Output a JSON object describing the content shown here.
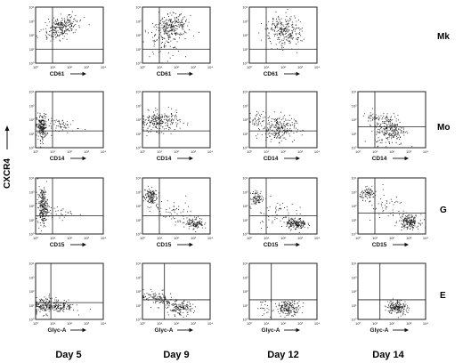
{
  "figure": {
    "y_axis_label": "CXCR4",
    "columns": [
      "Day 5",
      "Day 9",
      "Day 12",
      "Day 14"
    ],
    "rows": [
      {
        "label": "Mk",
        "marker": "CD61"
      },
      {
        "label": "Mo",
        "marker": "CD14"
      },
      {
        "label": "G",
        "marker": "CD15"
      },
      {
        "label": "E",
        "marker": "Glyc-A"
      }
    ],
    "axis_ticks": [
      "10⁰",
      "10¹",
      "10²",
      "10³",
      "10⁴"
    ]
  },
  "chart_data": [
    {
      "type": "scatter",
      "row": "Mk",
      "day": "Day 5",
      "xlabel": "CD61",
      "ylabel": "CXCR4",
      "xlim": [
        0,
        4
      ],
      "ylim": [
        0,
        4
      ],
      "quadrant_gate": [
        1,
        1
      ],
      "clusters": [
        {
          "x": 1.5,
          "y": 2.6,
          "sx": 0.55,
          "sy": 0.35,
          "n": 260,
          "tilt": 0.6
        }
      ]
    },
    {
      "type": "scatter",
      "row": "Mk",
      "day": "Day 9",
      "xlabel": "CD61",
      "ylabel": "CXCR4",
      "xlim": [
        0,
        4
      ],
      "ylim": [
        0,
        4
      ],
      "quadrant_gate": [
        1,
        1
      ],
      "clusters": [
        {
          "x": 1.75,
          "y": 2.6,
          "sx": 0.55,
          "sy": 0.4,
          "n": 250,
          "tilt": 0.5
        },
        {
          "x": 1.1,
          "y": 1.5,
          "sx": 0.6,
          "sy": 0.6,
          "n": 60,
          "tilt": 0
        }
      ]
    },
    {
      "type": "scatter",
      "row": "Mk",
      "day": "Day 12",
      "xlabel": "CD61",
      "ylabel": "CXCR4",
      "xlim": [
        0,
        4
      ],
      "ylim": [
        0,
        4
      ],
      "quadrant_gate": [
        1,
        1
      ],
      "clusters": [
        {
          "x": 2.0,
          "y": 2.3,
          "sx": 0.5,
          "sy": 0.6,
          "n": 260,
          "tilt": 0.6
        }
      ]
    },
    {
      "type": "scatter",
      "row": "Mo",
      "day": "Day 5",
      "xlabel": "CD14",
      "ylabel": "CXCR4",
      "xlim": [
        0,
        4
      ],
      "ylim": [
        0,
        4
      ],
      "quadrant_gate": [
        1,
        1.2
      ],
      "clusters": [
        {
          "x": 0.35,
          "y": 1.5,
          "sx": 0.15,
          "sy": 0.45,
          "n": 200,
          "tilt": 0
        },
        {
          "x": 1.6,
          "y": 1.6,
          "sx": 0.5,
          "sy": 0.25,
          "n": 60,
          "tilt": 0
        }
      ]
    },
    {
      "type": "scatter",
      "row": "Mo",
      "day": "Day 9",
      "xlabel": "CD14",
      "ylabel": "CXCR4",
      "xlim": [
        0,
        4
      ],
      "ylim": [
        0,
        4
      ],
      "quadrant_gate": [
        1,
        1.2
      ],
      "clusters": [
        {
          "x": 1.0,
          "y": 1.9,
          "sx": 0.6,
          "sy": 0.35,
          "n": 230,
          "tilt": 0
        }
      ]
    },
    {
      "type": "scatter",
      "row": "Mo",
      "day": "Day 12",
      "xlabel": "CD14",
      "ylabel": "CXCR4",
      "xlim": [
        0,
        4
      ],
      "ylim": [
        0,
        4
      ],
      "quadrant_gate": [
        1,
        1.2
      ],
      "clusters": [
        {
          "x": 1.7,
          "y": 1.4,
          "sx": 0.5,
          "sy": 0.45,
          "n": 230,
          "tilt": 0
        },
        {
          "x": 0.4,
          "y": 2.0,
          "sx": 0.2,
          "sy": 0.3,
          "n": 40,
          "tilt": 0
        }
      ]
    },
    {
      "type": "scatter",
      "row": "Mo",
      "day": "Day 14",
      "xlabel": "CD14",
      "ylabel": "CXCR4",
      "xlim": [
        0,
        4
      ],
      "ylim": [
        0,
        4
      ],
      "quadrant_gate": [
        1,
        1.5
      ],
      "clusters": [
        {
          "x": 1.9,
          "y": 1.3,
          "sx": 0.45,
          "sy": 0.55,
          "n": 250,
          "tilt": 0
        },
        {
          "x": 1.0,
          "y": 2.2,
          "sx": 0.3,
          "sy": 0.25,
          "n": 40,
          "tilt": 0
        }
      ]
    },
    {
      "type": "scatter",
      "row": "G",
      "day": "Day 5",
      "xlabel": "CD15",
      "ylabel": "CXCR4",
      "xlim": [
        0,
        4
      ],
      "ylim": [
        0,
        4
      ],
      "quadrant_gate": [
        1,
        1.3
      ],
      "clusters": [
        {
          "x": 0.4,
          "y": 2.0,
          "sx": 0.15,
          "sy": 0.65,
          "n": 240,
          "tilt": 0
        },
        {
          "x": 1.5,
          "y": 1.5,
          "sx": 0.4,
          "sy": 0.2,
          "n": 30,
          "tilt": 0
        }
      ]
    },
    {
      "type": "scatter",
      "row": "G",
      "day": "Day 9",
      "xlabel": "CD15",
      "ylabel": "CXCR4",
      "xlim": [
        0,
        4
      ],
      "ylim": [
        0,
        4
      ],
      "quadrant_gate": [
        1,
        1.3
      ],
      "clusters": [
        {
          "x": 0.45,
          "y": 2.7,
          "sx": 0.2,
          "sy": 0.35,
          "n": 130,
          "tilt": 0
        },
        {
          "x": 1.8,
          "y": 1.5,
          "sx": 0.6,
          "sy": 0.4,
          "n": 60,
          "tilt": -0.4
        },
        {
          "x": 3.1,
          "y": 0.8,
          "sx": 0.25,
          "sy": 0.2,
          "n": 110,
          "tilt": 0
        }
      ]
    },
    {
      "type": "scatter",
      "row": "G",
      "day": "Day 12",
      "xlabel": "CD15",
      "ylabel": "CXCR4",
      "xlim": [
        0,
        4
      ],
      "ylim": [
        0,
        4
      ],
      "quadrant_gate": [
        1,
        1.3
      ],
      "clusters": [
        {
          "x": 0.45,
          "y": 2.6,
          "sx": 0.2,
          "sy": 0.25,
          "n": 80,
          "tilt": 0
        },
        {
          "x": 1.5,
          "y": 1.5,
          "sx": 0.6,
          "sy": 0.5,
          "n": 60,
          "tilt": 0
        },
        {
          "x": 2.75,
          "y": 0.75,
          "sx": 0.3,
          "sy": 0.2,
          "n": 170,
          "tilt": 0
        }
      ]
    },
    {
      "type": "scatter",
      "row": "G",
      "day": "Day 14",
      "xlabel": "CD15",
      "ylabel": "CXCR4",
      "xlim": [
        0,
        4
      ],
      "ylim": [
        0,
        4
      ],
      "quadrant_gate": [
        1,
        1.5
      ],
      "clusters": [
        {
          "x": 0.6,
          "y": 2.9,
          "sx": 0.25,
          "sy": 0.2,
          "n": 80,
          "tilt": 0
        },
        {
          "x": 1.7,
          "y": 1.9,
          "sx": 0.6,
          "sy": 0.5,
          "n": 50,
          "tilt": 0
        },
        {
          "x": 3.0,
          "y": 0.9,
          "sx": 0.3,
          "sy": 0.25,
          "n": 180,
          "tilt": 0
        }
      ]
    },
    {
      "type": "scatter",
      "row": "E",
      "day": "Day 5",
      "xlabel": "Glyc-A",
      "ylabel": "CXCR4",
      "xlim": [
        0,
        4
      ],
      "ylim": [
        0,
        4
      ],
      "quadrant_gate": [
        0.9,
        1.2
      ],
      "clusters": [
        {
          "x": 0.5,
          "y": 1.0,
          "sx": 0.35,
          "sy": 0.3,
          "n": 150,
          "tilt": 0
        },
        {
          "x": 1.5,
          "y": 0.95,
          "sx": 0.4,
          "sy": 0.2,
          "n": 120,
          "tilt": 0
        }
      ]
    },
    {
      "type": "scatter",
      "row": "E",
      "day": "Day 9",
      "xlabel": "Glyc-A",
      "ylabel": "CXCR4",
      "xlim": [
        0,
        4
      ],
      "ylim": [
        0,
        4
      ],
      "quadrant_gate": [
        1.3,
        1.4
      ],
      "clusters": [
        {
          "x": 0.9,
          "y": 1.5,
          "sx": 0.55,
          "sy": 0.25,
          "n": 120,
          "tilt": -0.3
        },
        {
          "x": 2.2,
          "y": 0.8,
          "sx": 0.35,
          "sy": 0.25,
          "n": 140,
          "tilt": 0
        }
      ]
    },
    {
      "type": "scatter",
      "row": "E",
      "day": "Day 12",
      "xlabel": "Glyc-A",
      "ylabel": "CXCR4",
      "xlim": [
        0,
        4
      ],
      "ylim": [
        0,
        4
      ],
      "quadrant_gate": [
        1.3,
        1.4
      ],
      "clusters": [
        {
          "x": 2.3,
          "y": 0.85,
          "sx": 0.35,
          "sy": 0.25,
          "n": 170,
          "tilt": 0
        },
        {
          "x": 1.0,
          "y": 0.9,
          "sx": 0.3,
          "sy": 0.3,
          "n": 25,
          "tilt": 0
        }
      ]
    },
    {
      "type": "scatter",
      "row": "E",
      "day": "Day 14",
      "xlabel": "Glyc-A",
      "ylabel": "CXCR4",
      "xlim": [
        0,
        4
      ],
      "ylim": [
        0,
        4
      ],
      "quadrant_gate": [
        1.3,
        1.4
      ],
      "clusters": [
        {
          "x": 2.3,
          "y": 0.9,
          "sx": 0.3,
          "sy": 0.25,
          "n": 180,
          "tilt": 0
        }
      ]
    }
  ]
}
